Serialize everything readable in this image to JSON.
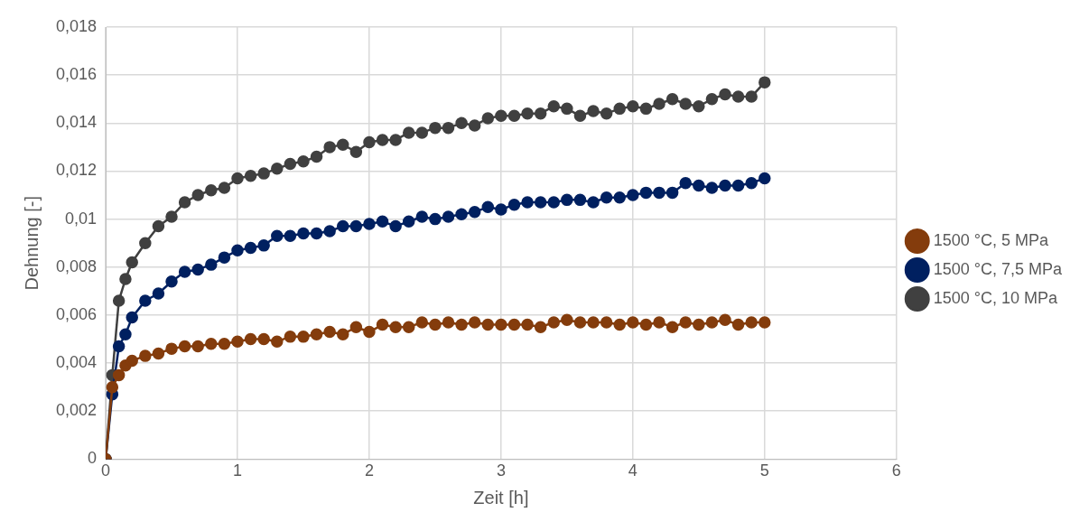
{
  "chart_data": {
    "type": "line",
    "xlabel": "Zeit [h]",
    "ylabel": "Dehnung [-]",
    "xlim": [
      0,
      6
    ],
    "xticks": [
      0,
      1,
      2,
      3,
      4,
      5,
      6
    ],
    "ylim": [
      0,
      0.018
    ],
    "yticks": [
      0,
      {
        "value": 0.002,
        "label": "0,002"
      },
      {
        "value": 0.004,
        "label": "0,004"
      },
      {
        "value": 0.006,
        "label": "0,006"
      },
      {
        "value": 0.008,
        "label": "0,008"
      },
      {
        "value": 0.01,
        "label": "0,01"
      },
      {
        "value": 0.012,
        "label": "0,012"
      },
      {
        "value": 0.014,
        "label": "0,014"
      },
      {
        "value": 0.016,
        "label": "0,016"
      },
      {
        "value": 0.018,
        "label": "0,018"
      }
    ],
    "grid": true,
    "legend": "right",
    "marker": "circle",
    "line_style": "solid",
    "x": [
      0,
      0.05,
      0.1,
      0.15,
      0.2,
      0.3,
      0.4,
      0.5,
      0.6,
      0.7,
      0.8,
      0.9,
      1,
      1.1,
      1.2,
      1.3,
      1.4,
      1.5,
      1.6,
      1.7,
      1.8,
      1.9,
      2,
      2.1,
      2.2,
      2.3,
      2.4,
      2.5,
      2.6,
      2.7,
      2.8,
      2.9,
      3,
      3.1,
      3.2,
      3.3,
      3.4,
      3.5,
      3.6,
      3.7,
      3.8,
      3.9,
      4,
      4.1,
      4.2,
      4.3,
      4.4,
      4.5,
      4.6,
      4.7,
      4.8,
      4.9,
      5
    ],
    "series": [
      {
        "name": "1500 °C, 5 MPa",
        "color": "#843c0c",
        "values": [
          0,
          0.003,
          0.0035,
          0.0039,
          0.0041,
          0.0043,
          0.0044,
          0.0046,
          0.0047,
          0.0047,
          0.0048,
          0.0048,
          0.0049,
          0.005,
          0.005,
          0.0049,
          0.0051,
          0.0051,
          0.0052,
          0.0053,
          0.0052,
          0.0055,
          0.0053,
          0.0056,
          0.0055,
          0.0055,
          0.0057,
          0.0056,
          0.0057,
          0.0056,
          0.0057,
          0.0056,
          0.0056,
          0.0056,
          0.0056,
          0.0055,
          0.0057,
          0.0058,
          0.0057,
          0.0057,
          0.0057,
          0.0056,
          0.0057,
          0.0056,
          0.0057,
          0.0055,
          0.0057,
          0.0056,
          0.0057,
          0.0058,
          0.0056,
          0.0057,
          0.0057
        ]
      },
      {
        "name": "1500 °C, 7,5 MPa",
        "color": "#002060",
        "values": [
          0,
          0.0027,
          0.0047,
          0.0052,
          0.0059,
          0.0066,
          0.0069,
          0.0074,
          0.0078,
          0.0079,
          0.0081,
          0.0084,
          0.0087,
          0.0088,
          0.0089,
          0.0093,
          0.0093,
          0.0094,
          0.0094,
          0.0095,
          0.0097,
          0.0097,
          0.0098,
          0.0099,
          0.0097,
          0.0099,
          0.0101,
          0.01,
          0.0101,
          0.0102,
          0.0103,
          0.0105,
          0.0104,
          0.0106,
          0.0107,
          0.0107,
          0.0107,
          0.0108,
          0.0108,
          0.0107,
          0.0109,
          0.0109,
          0.011,
          0.0111,
          0.0111,
          0.0111,
          0.0115,
          0.0114,
          0.0113,
          0.0114,
          0.0114,
          0.0115,
          0.0117
        ]
      },
      {
        "name": "1500 °C, 10 MPa",
        "color": "#404040",
        "values": [
          0,
          0.0035,
          0.0066,
          0.0075,
          0.0082,
          0.009,
          0.0097,
          0.0101,
          0.0107,
          0.011,
          0.0112,
          0.0113,
          0.0117,
          0.0118,
          0.0119,
          0.0121,
          0.0123,
          0.0124,
          0.0126,
          0.013,
          0.0131,
          0.0128,
          0.0132,
          0.0133,
          0.0133,
          0.0136,
          0.0136,
          0.0138,
          0.0138,
          0.014,
          0.0139,
          0.0142,
          0.0143,
          0.0143,
          0.0144,
          0.0144,
          0.0147,
          0.0146,
          0.0143,
          0.0145,
          0.0144,
          0.0146,
          0.0147,
          0.0146,
          0.0148,
          0.015,
          0.0148,
          0.0147,
          0.015,
          0.0152,
          0.0151,
          0.0151,
          0.0157
        ]
      }
    ]
  }
}
